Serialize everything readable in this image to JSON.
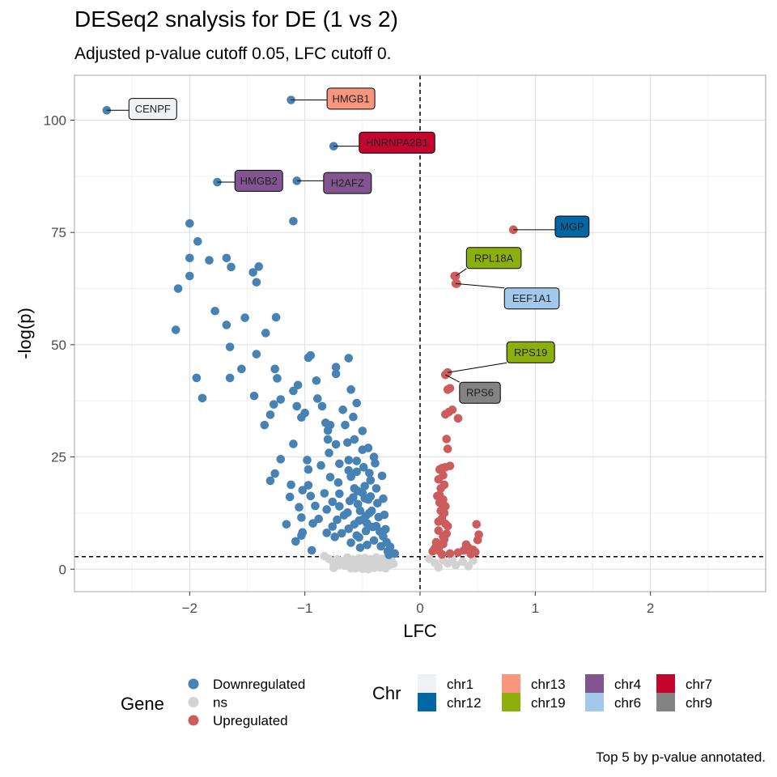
{
  "title": "DESeq2 snalysis for DE (1 vs 2)",
  "subtitle": "Adjusted p-value cutoff 0.05, LFC cutoff 0.",
  "caption": "Top 5 by p-value annotated.",
  "chart_data": {
    "type": "scatter",
    "xlabel": "LFC",
    "ylabel": "-log(p)",
    "xlim": [
      -3,
      3
    ],
    "ylim": [
      -5,
      110
    ],
    "x_ticks": [
      -2,
      -1,
      0,
      1,
      2
    ],
    "x_tick_labels": [
      "−2",
      "−1",
      "0",
      "1",
      "2"
    ],
    "y_ticks": [
      0,
      25,
      50,
      75,
      100
    ],
    "y_tick_labels": [
      "0",
      "25",
      "50",
      "75",
      "100"
    ],
    "grid": true,
    "vline_x": 0,
    "hline_y": 2.8,
    "group_colors": {
      "Downregulated": "#4682B4",
      "ns": "#D3D3D3",
      "Upregulated": "#CD5C5C"
    },
    "labeled_points": [
      {
        "x": -2.72,
        "y": 102.2,
        "group": "Downregulated",
        "label": "CENPF",
        "fill": "#F0F1F4",
        "lx": -2.32,
        "ly": 102.5
      },
      {
        "x": -1.12,
        "y": 104.5,
        "group": "Downregulated",
        "label": "HMGB1",
        "fill": "#F7967C",
        "lx": -0.6,
        "ly": 104.8
      },
      {
        "x": -0.75,
        "y": 94.2,
        "group": "Downregulated",
        "label": "HNRNPA2B1",
        "fill": "#C4062F",
        "lx": -0.2,
        "ly": 95.0
      },
      {
        "x": -1.76,
        "y": 86.2,
        "group": "Downregulated",
        "label": "HMGB2",
        "fill": "#835590",
        "lx": -1.4,
        "ly": 86.5
      },
      {
        "x": -1.07,
        "y": 86.5,
        "group": "Downregulated",
        "label": "H2AFZ",
        "fill": "#835590",
        "lx": -0.63,
        "ly": 86.0
      },
      {
        "x": 0.81,
        "y": 75.6,
        "group": "Upregulated",
        "label": "MGP",
        "fill": "#0367A6",
        "lx": 1.32,
        "ly": 76.3
      },
      {
        "x": 0.31,
        "y": 65.3,
        "group": "Upregulated",
        "label": "RPL18A",
        "fill": "#8CAF0D",
        "lx": 0.64,
        "ly": 69.3
      },
      {
        "x": 0.31,
        "y": 63.6,
        "group": "Upregulated",
        "label": "EEF1A1",
        "fill": "#A2C8EB",
        "lx": 0.97,
        "ly": 60.3
      },
      {
        "x": 0.24,
        "y": 43.8,
        "group": "Upregulated",
        "label": "RPS19",
        "fill": "#8CAF0D",
        "lx": 0.96,
        "ly": 48.3
      },
      {
        "x": 0.22,
        "y": 43.3,
        "group": "Upregulated",
        "label": "RPS6",
        "fill": "#838383",
        "lx": 0.52,
        "ly": 39.3
      }
    ],
    "points_down": [
      [
        -2.0,
        77
      ],
      [
        -1.93,
        73
      ],
      [
        -2.0,
        69.3
      ],
      [
        -2.0,
        65.3
      ],
      [
        -2.1,
        62.5
      ],
      [
        -2.12,
        53.3
      ],
      [
        -1.68,
        69.3
      ],
      [
        -1.64,
        67.3
      ],
      [
        -1.83,
        68.8
      ],
      [
        -1.45,
        66.1
      ],
      [
        -1.4,
        67.4
      ],
      [
        -1.42,
        63.9
      ],
      [
        -1.78,
        57.5
      ],
      [
        -1.52,
        56.0
      ],
      [
        -1.68,
        54.4
      ],
      [
        -1.25,
        56.1
      ],
      [
        -1.34,
        52.6
      ],
      [
        -1.65,
        49.5
      ],
      [
        -1.42,
        47.9
      ],
      [
        -1.94,
        42.6
      ],
      [
        -1.89,
        38.1
      ],
      [
        -1.55,
        44.6
      ],
      [
        -1.65,
        42.6
      ],
      [
        -1.44,
        38.6
      ],
      [
        -1.1,
        77.5
      ],
      [
        -1.35,
        32.1
      ],
      [
        -1.27,
        36.7
      ],
      [
        -1.3,
        34.4
      ],
      [
        -1.26,
        44.6
      ],
      [
        -1.24,
        42.5
      ],
      [
        -1.21,
        37.8
      ],
      [
        -1.1,
        39.7
      ],
      [
        -1.06,
        41.0
      ],
      [
        -1.07,
        36.3
      ],
      [
        -1.03,
        33.8
      ],
      [
        -0.95,
        47.6
      ],
      [
        -0.97,
        47.1
      ],
      [
        -0.9,
        42.0
      ],
      [
        -0.89,
        38.0
      ],
      [
        -0.85,
        36.3
      ],
      [
        -0.82,
        32.6
      ],
      [
        -0.73,
        45.0
      ],
      [
        -0.73,
        43.5
      ],
      [
        -0.6,
        40.0
      ],
      [
        -0.62,
        47.0
      ],
      [
        -0.55,
        37.0
      ],
      [
        -0.58,
        33.9
      ],
      [
        -1.0,
        34.8
      ],
      [
        -1.1,
        27.9
      ],
      [
        -1.21,
        24.5
      ],
      [
        -1.26,
        21.3
      ],
      [
        -1.3,
        19.7
      ],
      [
        -1.12,
        18.8
      ],
      [
        -1.13,
        16.1
      ],
      [
        -0.98,
        24.3
      ],
      [
        -0.97,
        22.2
      ],
      [
        -0.97,
        18.7
      ],
      [
        -1.02,
        17.6
      ],
      [
        -0.95,
        16.3
      ],
      [
        -0.91,
        14.1
      ],
      [
        -0.88,
        11.2
      ],
      [
        -0.93,
        10.2
      ],
      [
        -1.05,
        13.8
      ],
      [
        -1.03,
        11.5
      ],
      [
        -1.02,
        8.2
      ],
      [
        -1.03,
        7.5
      ],
      [
        -1.16,
        10.0
      ],
      [
        -1.08,
        6.2
      ],
      [
        -0.94,
        4.2
      ],
      [
        -0.86,
        23.1
      ],
      [
        -0.8,
        28.9
      ],
      [
        -0.79,
        25.9
      ],
      [
        -0.78,
        20.5
      ],
      [
        -0.83,
        16.9
      ],
      [
        -0.76,
        15.0
      ],
      [
        -0.81,
        13.3
      ],
      [
        -0.81,
        8.1
      ],
      [
        -0.76,
        9.5
      ],
      [
        -0.8,
        30.9
      ],
      [
        -0.78,
        32.1
      ],
      [
        -0.73,
        27.8
      ],
      [
        -0.7,
        23.5
      ],
      [
        -0.71,
        19.3
      ],
      [
        -0.7,
        16.8
      ],
      [
        -0.72,
        11.0
      ],
      [
        -0.74,
        7.2
      ],
      [
        -0.67,
        35.5
      ],
      [
        -0.65,
        32.1
      ],
      [
        -0.63,
        28.2
      ],
      [
        -0.62,
        24.3
      ],
      [
        -0.6,
        20.6
      ],
      [
        -0.61,
        15.2
      ],
      [
        -0.63,
        12.6
      ],
      [
        -0.62,
        9.0
      ],
      [
        -0.6,
        5.9
      ],
      [
        -0.57,
        28.9
      ],
      [
        -0.55,
        24.1
      ],
      [
        -0.55,
        21.7
      ],
      [
        -0.54,
        17.4
      ],
      [
        -0.54,
        14.5
      ],
      [
        -0.53,
        10.8
      ],
      [
        -0.53,
        7.1
      ],
      [
        -0.52,
        4.8
      ],
      [
        -0.5,
        30.8
      ],
      [
        -0.5,
        26.6
      ],
      [
        -0.49,
        22.7
      ],
      [
        -0.48,
        18.5
      ],
      [
        -0.48,
        15.8
      ],
      [
        -0.47,
        11.9
      ],
      [
        -0.47,
        8.5
      ],
      [
        -0.46,
        5.4
      ],
      [
        -0.45,
        27.0
      ],
      [
        -0.44,
        21.4
      ],
      [
        -0.43,
        19.8
      ],
      [
        -0.43,
        16.2
      ],
      [
        -0.42,
        13.0
      ],
      [
        -0.41,
        9.4
      ],
      [
        -0.4,
        6.4
      ],
      [
        -0.39,
        23.6
      ],
      [
        -0.38,
        18.0
      ],
      [
        -0.37,
        14.7
      ],
      [
        -0.36,
        11.6
      ],
      [
        -0.35,
        8.4
      ],
      [
        -0.34,
        5.1
      ],
      [
        -0.33,
        20.8
      ],
      [
        -0.32,
        15.7
      ],
      [
        -0.31,
        12.1
      ],
      [
        -0.3,
        8.9
      ],
      [
        -0.29,
        6.0
      ],
      [
        -0.28,
        4.0
      ],
      [
        -0.45,
        15.5
      ],
      [
        -0.46,
        10.2
      ],
      [
        -0.52,
        13.0
      ],
      [
        -0.57,
        10.0
      ],
      [
        -0.58,
        16.0
      ],
      [
        -0.62,
        22.0
      ],
      [
        -0.57,
        18.0
      ],
      [
        -0.5,
        17.0
      ],
      [
        -0.44,
        12.5
      ],
      [
        -0.38,
        9.6
      ],
      [
        -0.32,
        7.3
      ],
      [
        -0.26,
        5.0
      ],
      [
        -0.22,
        3.5
      ],
      [
        -0.27,
        3.2
      ],
      [
        -0.4,
        25.0
      ],
      [
        -0.5,
        11.0
      ],
      [
        -0.55,
        7.5
      ],
      [
        -0.66,
        12.0
      ],
      [
        -0.68,
        8.0
      ],
      [
        -0.7,
        14.0
      ]
    ],
    "points_ns": [
      [
        -0.83,
        2.9
      ],
      [
        -0.79,
        2.3
      ],
      [
        -0.75,
        1.4
      ],
      [
        -0.75,
        0.3
      ],
      [
        -0.72,
        2.2
      ],
      [
        -0.7,
        1.0
      ],
      [
        -0.68,
        1.8
      ],
      [
        -0.65,
        0.8
      ],
      [
        -0.63,
        2.6
      ],
      [
        -0.61,
        1.3
      ],
      [
        -0.6,
        0.2
      ],
      [
        -0.58,
        2.1
      ],
      [
        -0.56,
        1.6
      ],
      [
        -0.55,
        0.6
      ],
      [
        -0.53,
        2.4
      ],
      [
        -0.51,
        1.2
      ],
      [
        -0.5,
        0.1
      ],
      [
        -0.48,
        2.5
      ],
      [
        -0.46,
        1.7
      ],
      [
        -0.44,
        0.7
      ],
      [
        -0.43,
        2.2
      ],
      [
        -0.41,
        1.1
      ],
      [
        -0.4,
        0.3
      ],
      [
        -0.38,
        2.6
      ],
      [
        -0.36,
        1.5
      ],
      [
        -0.35,
        0.4
      ],
      [
        -0.33,
        2.3
      ],
      [
        -0.31,
        1.0
      ],
      [
        -0.3,
        0.2
      ],
      [
        -0.29,
        1.9
      ],
      [
        -0.27,
        0.9
      ],
      [
        -0.25,
        2.0
      ],
      [
        -0.23,
        1.2
      ],
      [
        -0.56,
        0.2
      ],
      [
        -0.45,
        0.0
      ],
      [
        -0.65,
        1.9
      ],
      [
        0.08,
        2.3
      ],
      [
        0.13,
        1.4
      ],
      [
        0.16,
        0.4
      ],
      [
        0.2,
        2.0
      ],
      [
        0.24,
        1.3
      ],
      [
        0.28,
        2.2
      ],
      [
        0.31,
        0.9
      ],
      [
        0.37,
        1.7
      ],
      [
        0.42,
        0.7
      ],
      [
        0.46,
        1.9
      ]
    ],
    "points_up": [
      [
        0.81,
        75.6
      ],
      [
        0.3,
        65.3
      ],
      [
        0.32,
        63.6
      ],
      [
        0.24,
        43.8
      ],
      [
        0.22,
        43.3
      ],
      [
        0.26,
        40.3
      ],
      [
        0.24,
        40.0
      ],
      [
        0.28,
        35.5
      ],
      [
        0.25,
        35.0
      ],
      [
        0.22,
        34.5
      ],
      [
        0.33,
        33.6
      ],
      [
        0.23,
        29.0
      ],
      [
        0.24,
        26.8
      ],
      [
        0.26,
        23.0
      ],
      [
        0.22,
        22.7
      ],
      [
        0.19,
        22.5
      ],
      [
        0.17,
        22.2
      ],
      [
        0.2,
        20.9
      ],
      [
        0.16,
        20.0
      ],
      [
        0.21,
        18.8
      ],
      [
        0.18,
        18.0
      ],
      [
        0.17,
        16.5
      ],
      [
        0.15,
        16.3
      ],
      [
        0.2,
        15.5
      ],
      [
        0.17,
        14.8
      ],
      [
        0.22,
        14.0
      ],
      [
        0.18,
        13.0
      ],
      [
        0.21,
        12.5
      ],
      [
        0.19,
        11.3
      ],
      [
        0.16,
        10.6
      ],
      [
        0.22,
        10.1
      ],
      [
        0.24,
        9.6
      ],
      [
        0.16,
        8.6
      ],
      [
        0.23,
        7.9
      ],
      [
        0.2,
        7.3
      ],
      [
        0.21,
        6.6
      ],
      [
        0.14,
        6.0
      ],
      [
        0.2,
        5.6
      ],
      [
        0.17,
        5.1
      ],
      [
        0.13,
        4.7
      ],
      [
        0.16,
        4.2
      ],
      [
        0.11,
        4.0
      ],
      [
        0.26,
        3.5
      ],
      [
        0.19,
        3.3
      ],
      [
        0.49,
        10.0
      ],
      [
        0.51,
        7.7
      ],
      [
        0.5,
        6.5
      ],
      [
        0.4,
        5.5
      ],
      [
        0.42,
        4.8
      ],
      [
        0.46,
        4.3
      ],
      [
        0.48,
        3.8
      ],
      [
        0.38,
        4.2
      ],
      [
        0.33,
        3.7
      ],
      [
        0.44,
        3.4
      ]
    ],
    "legend_gene": {
      "title": "Gene",
      "items": [
        "Downregulated",
        "ns",
        "Upregulated"
      ]
    },
    "legend_chr": {
      "title": "Chr",
      "items": [
        {
          "name": "chr1",
          "color": "#F0F1F4"
        },
        {
          "name": "chr12",
          "color": "#0367A6"
        },
        {
          "name": "chr13",
          "color": "#F7967C"
        },
        {
          "name": "chr19",
          "color": "#8CAF0D"
        },
        {
          "name": "chr4",
          "color": "#835590"
        },
        {
          "name": "chr6",
          "color": "#A2C8EB"
        },
        {
          "name": "chr7",
          "color": "#C4062F"
        },
        {
          "name": "chr9",
          "color": "#838383"
        }
      ]
    }
  }
}
